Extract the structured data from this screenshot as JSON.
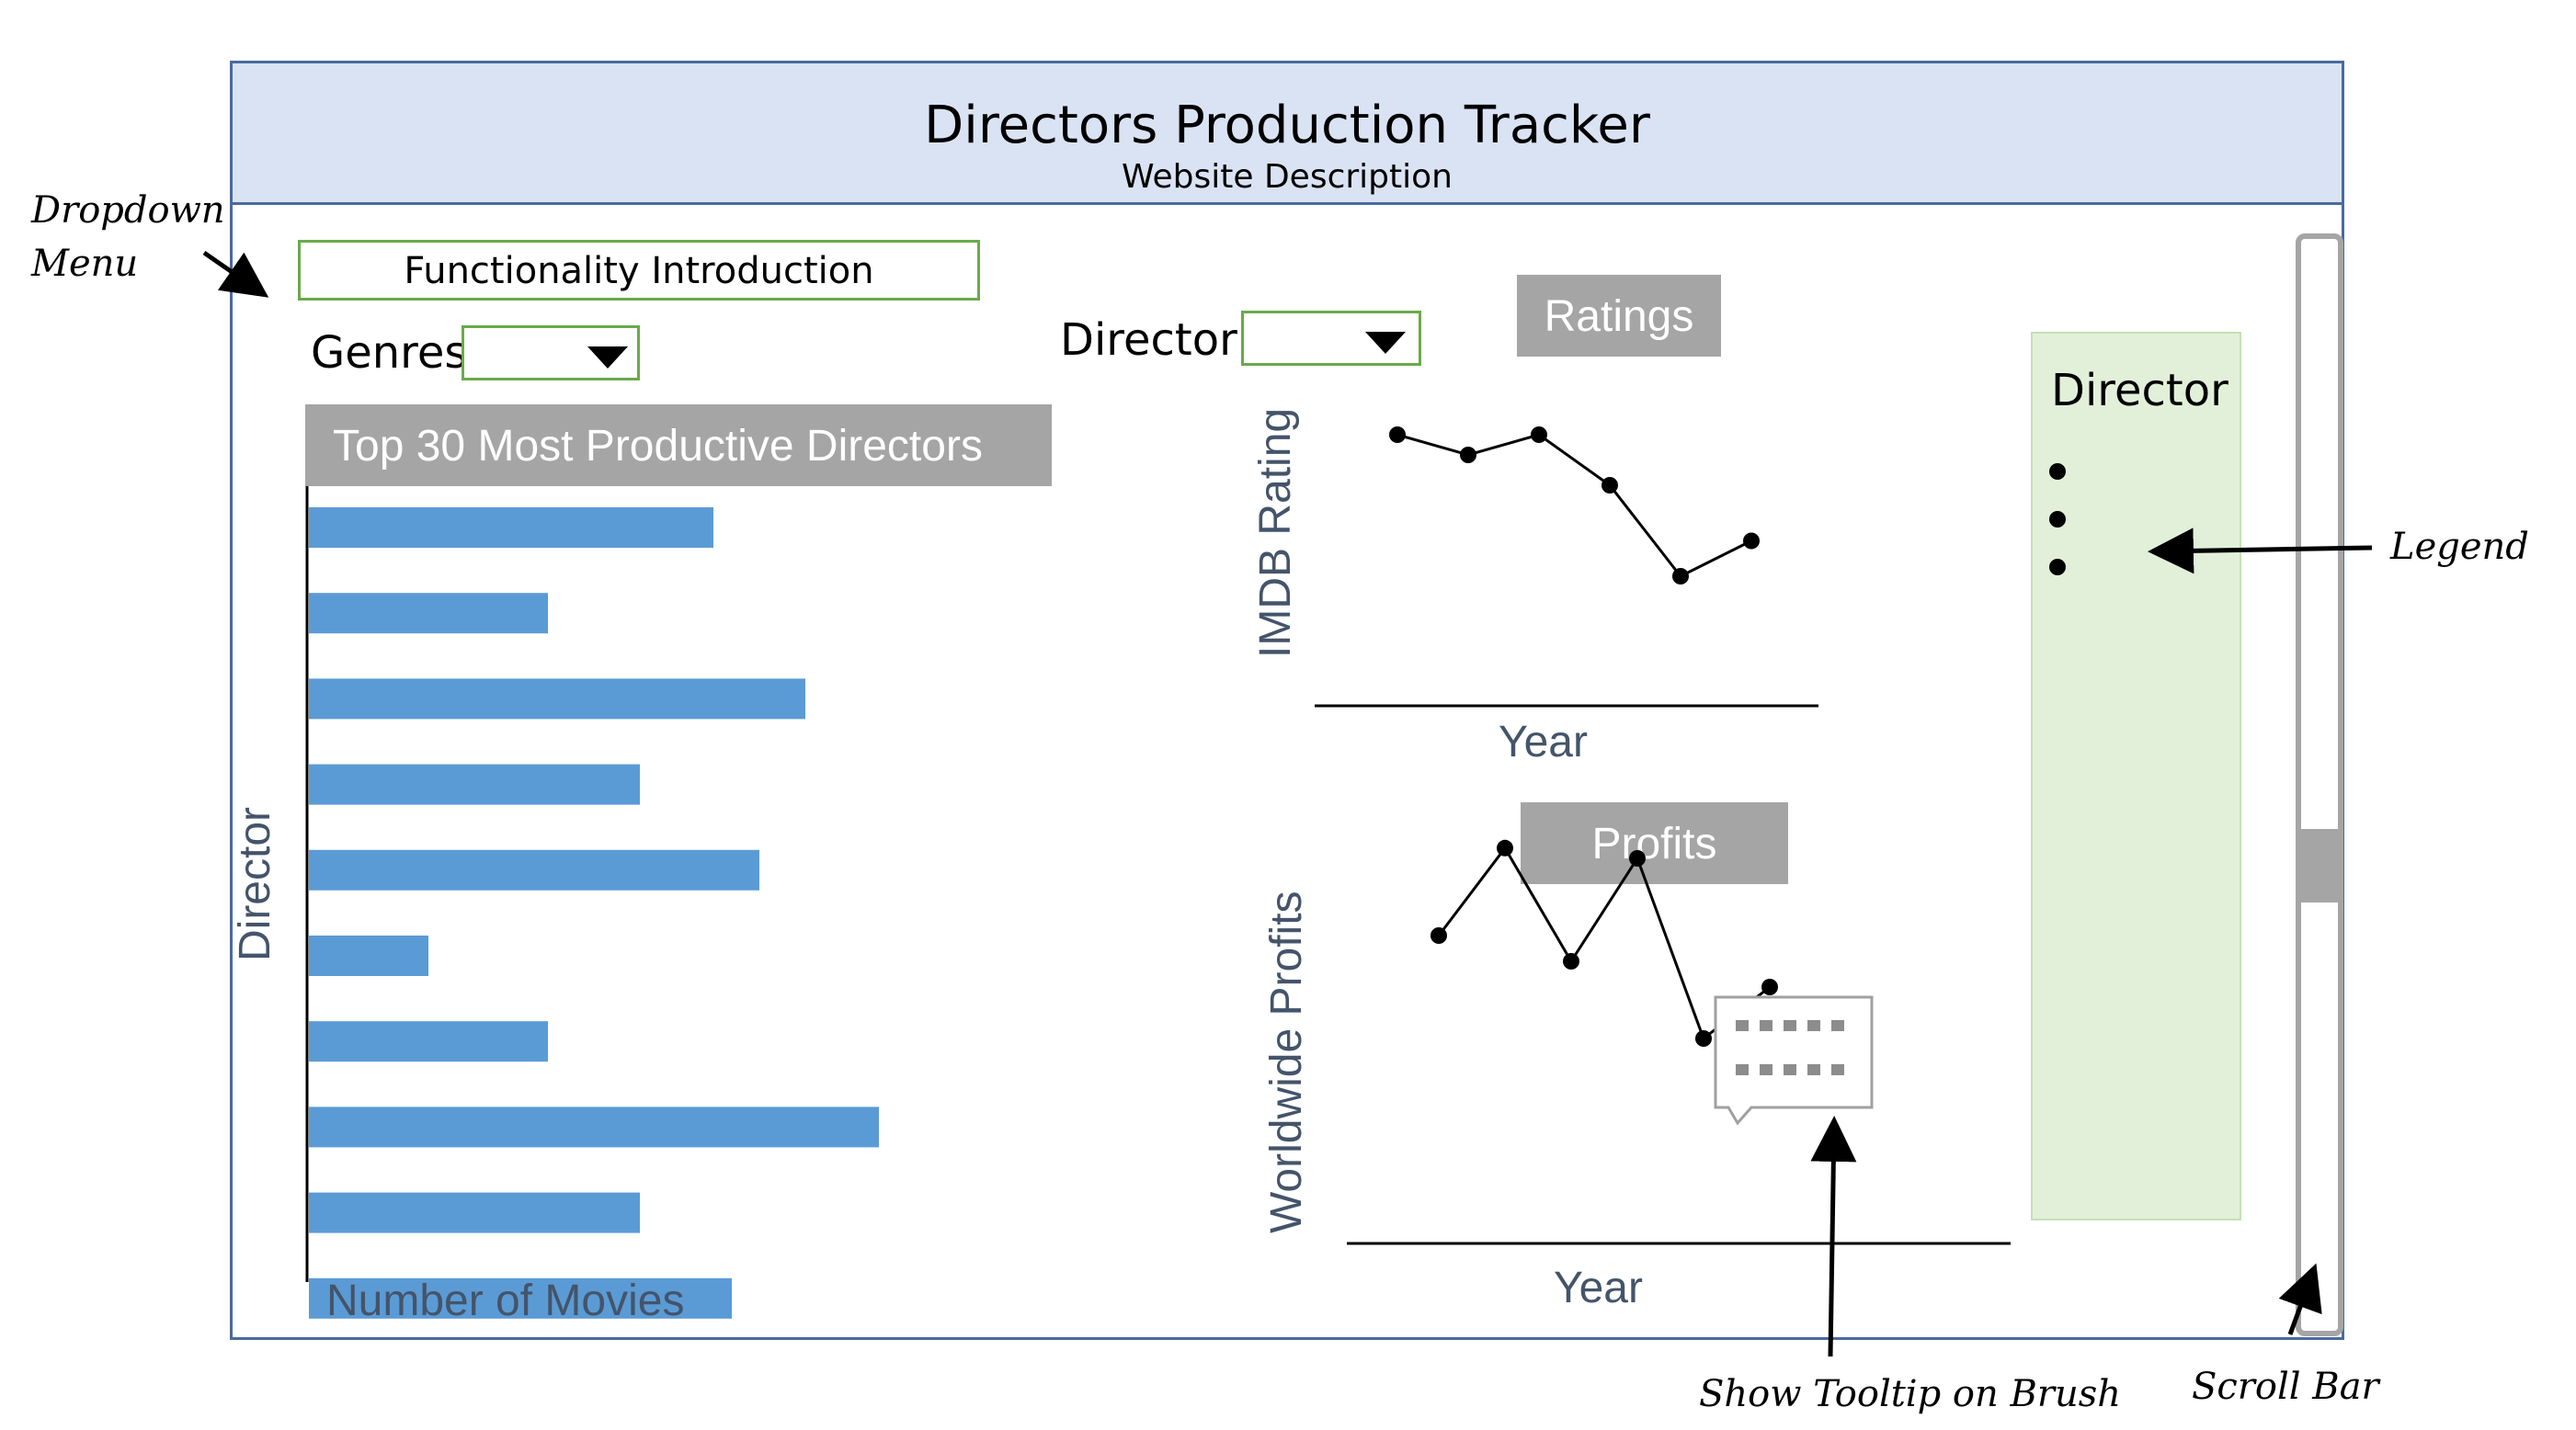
{
  "header": {
    "title": "Directors Production Tracker",
    "subtitle": "Website Description"
  },
  "controls": {
    "functionality_label": "Functionality Introduction",
    "genres_label": "Genres",
    "director_label": "Director"
  },
  "bar_chart": {
    "title": "Top 30  Most Productive Directors",
    "ylabel": "Director",
    "xlabel": "Number of Movies"
  },
  "ratings_chart": {
    "title": "Ratings",
    "ylabel": "IMDB Rating",
    "xlabel": "Year"
  },
  "profits_chart": {
    "title": "Profits",
    "ylabel": "Worldwide Profits",
    "xlabel": "Year"
  },
  "legend": {
    "title": "Director",
    "bullet_count": 3
  },
  "annotations": {
    "dropdown_menu": [
      "Dropdown",
      "Menu"
    ],
    "legend": "Legend",
    "tooltip": "Show Tooltip on Brush",
    "scrollbar": "Scroll Bar"
  },
  "colors": {
    "bar": "#5b9bd5",
    "header_bg": "#dae3f3",
    "frame": "#4a6aa0",
    "legend_bg": "#e2f0d9",
    "title_bg": "#a5a5a5",
    "green_border": "#6aaa4a"
  },
  "chart_data": [
    {
      "type": "bar",
      "orientation": "horizontal",
      "title": "Top 30  Most Productive Directors",
      "xlabel": "Number of Movies",
      "ylabel": "Director",
      "values": [
        4.4,
        2.6,
        5.4,
        3.6,
        4.9,
        1.3,
        2.6,
        6.2,
        3.6,
        4.6
      ],
      "xlim": [
        0,
        8
      ]
    },
    {
      "type": "line",
      "title": "Ratings",
      "xlabel": "Year",
      "ylabel": "IMDB Rating",
      "values": [
        6.6,
        6.2,
        6.6,
        5.6,
        3.8,
        4.5
      ],
      "ylim": [
        0,
        8
      ]
    },
    {
      "type": "line",
      "title": "Profits",
      "xlabel": "Year",
      "ylabel": "Worldwide Profits",
      "values": [
        5.0,
        6.7,
        4.5,
        6.5,
        3.0,
        4.0
      ],
      "ylim": [
        0,
        9
      ]
    }
  ]
}
